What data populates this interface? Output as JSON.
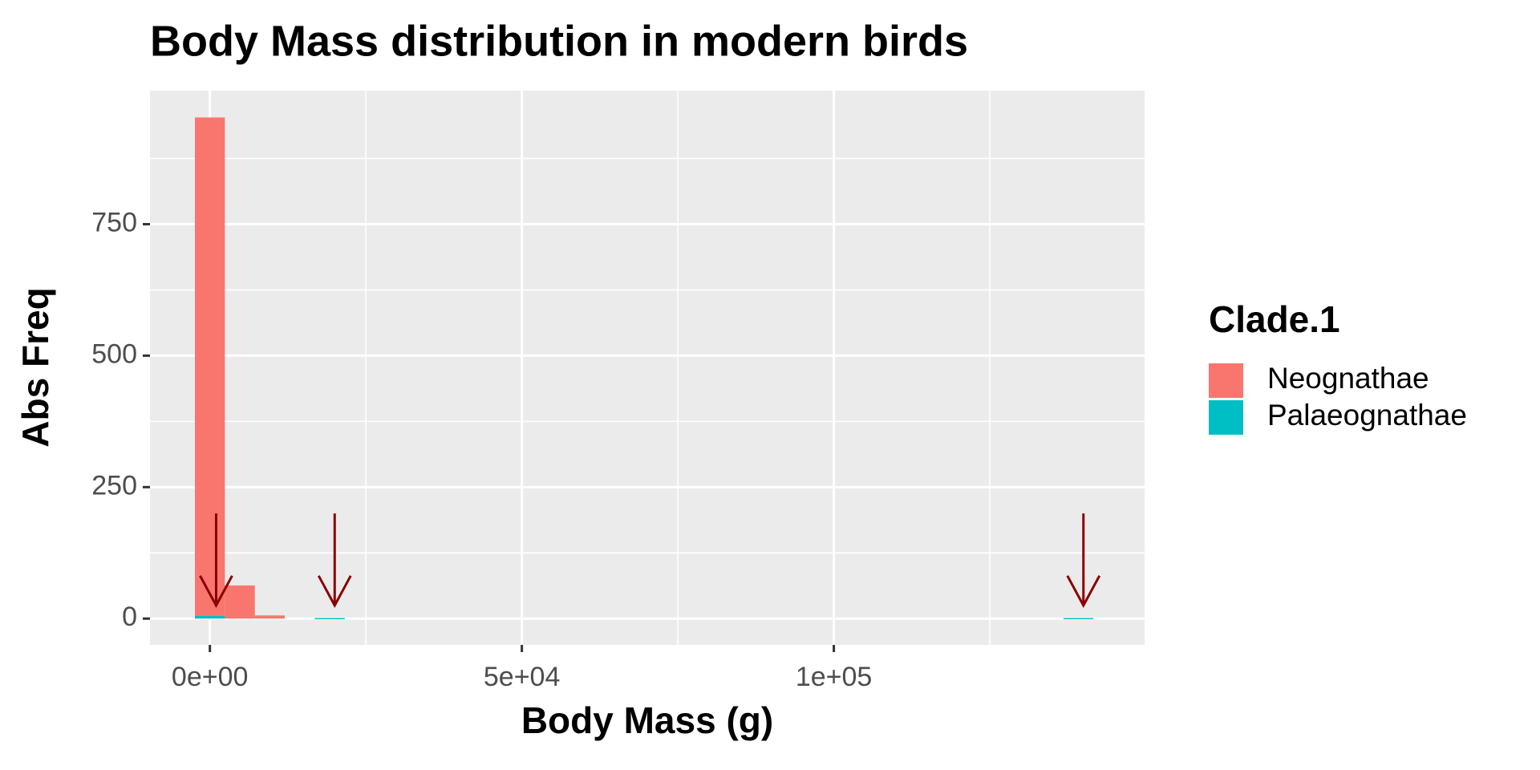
{
  "chart_data": {
    "type": "histogram",
    "title": "Body Mass distribution in modern birds",
    "x_label": "Body Mass (g)",
    "y_label": "Abs Freq",
    "legend_title": "Clade.1",
    "legend_position": "right",
    "stacked": true,
    "bins": [
      -2400,
      2400,
      7200,
      12000,
      16800,
      21600,
      26400,
      31200,
      36000,
      40800,
      45600,
      50400,
      55200,
      60000,
      64800,
      69600,
      74400,
      79200,
      84000,
      88800,
      93600,
      98400,
      103200,
      108000,
      112800,
      117600,
      122400,
      127200,
      132000,
      136800,
      141600
    ],
    "series": [
      {
        "name": "Neognathae",
        "color": "#F8766D",
        "values": [
          948,
          63,
          6,
          0,
          0,
          0,
          0,
          0,
          0,
          0,
          0,
          0,
          0,
          0,
          0,
          0,
          0,
          0,
          0,
          0,
          0,
          0,
          0,
          0,
          0,
          0,
          0,
          0,
          0,
          0
        ]
      },
      {
        "name": "Palaeognathae",
        "color": "#00BFC4",
        "values": [
          5,
          0,
          0,
          0,
          1,
          0,
          0,
          0,
          0,
          0,
          0,
          0,
          0,
          0,
          0,
          0,
          0,
          0,
          0,
          0,
          0,
          0,
          0,
          0,
          0,
          0,
          0,
          0,
          0,
          1
        ]
      }
    ],
    "annotations": [
      {
        "x": 1000,
        "y": 200,
        "yend": 25,
        "color": "#8B0000"
      },
      {
        "x": 20000,
        "y": 200,
        "yend": 25,
        "color": "#8B0000"
      },
      {
        "x": 140000,
        "y": 200,
        "yend": 25,
        "color": "#8B0000"
      }
    ],
    "xlim": [
      -9600,
      149800
    ],
    "ylim": [
      -50,
      1004
    ],
    "xticks": [
      {
        "value": 0,
        "label": "0e+00"
      },
      {
        "value": 50000,
        "label": "5e+04"
      },
      {
        "value": 100000,
        "label": "1e+05"
      }
    ],
    "yticks": [
      0,
      250,
      500,
      750
    ],
    "minor_xticks": [
      25000,
      75000,
      125000
    ],
    "minor_yticks": [
      125,
      375,
      625,
      875
    ],
    "grid": true,
    "panel_background": "#EBEBEB"
  }
}
